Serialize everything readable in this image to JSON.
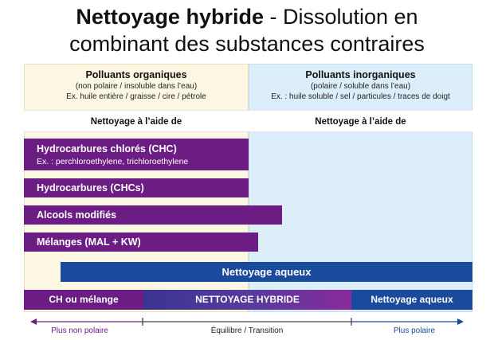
{
  "title": {
    "bold": "Nettoyage hybride",
    "rest": " - Dissolution en",
    "line2": "combinant des substances contraires"
  },
  "left_panel": {
    "heading": "Polluants organiques",
    "sub1": "(non polaire / insoluble dans l’eau)",
    "sub2": "Ex. huile entière / graisse / cire / pétrole",
    "usage": "Nettoyage à l’aide de"
  },
  "right_panel": {
    "heading": "Polluants inorganiques",
    "sub1": "(polaire / soluble dans l’eau)",
    "sub2": "Ex. : huile soluble / sel / particules / traces de doigt",
    "usage": "Nettoyage à l’aide de"
  },
  "bars": {
    "chc": {
      "label": "Hydrocarbures chlorés (CHC)",
      "example": "Ex. : perchloroethylene, trichloroethylene"
    },
    "hc": {
      "label": "Hydrocarbures (CHCs)"
    },
    "mal": {
      "label": "Alcools modifiés"
    },
    "mix": {
      "label": "Mélanges (MAL + KW)"
    },
    "aqueous": {
      "label": "Nettoyage aqueux"
    }
  },
  "segments": {
    "left": "CH ou mélange",
    "middle": "NETTOYAGE HYBRIDE",
    "right": "Nettoyage aqueux"
  },
  "axis": {
    "left": "Plus non polaire",
    "middle": "Équilibre / Transition",
    "right": "Plus polaire"
  },
  "colors": {
    "purple": "#6c1d84",
    "blue": "#1a4a9c",
    "left_bg": "#fcf7e2",
    "right_bg": "#ddeefb"
  }
}
